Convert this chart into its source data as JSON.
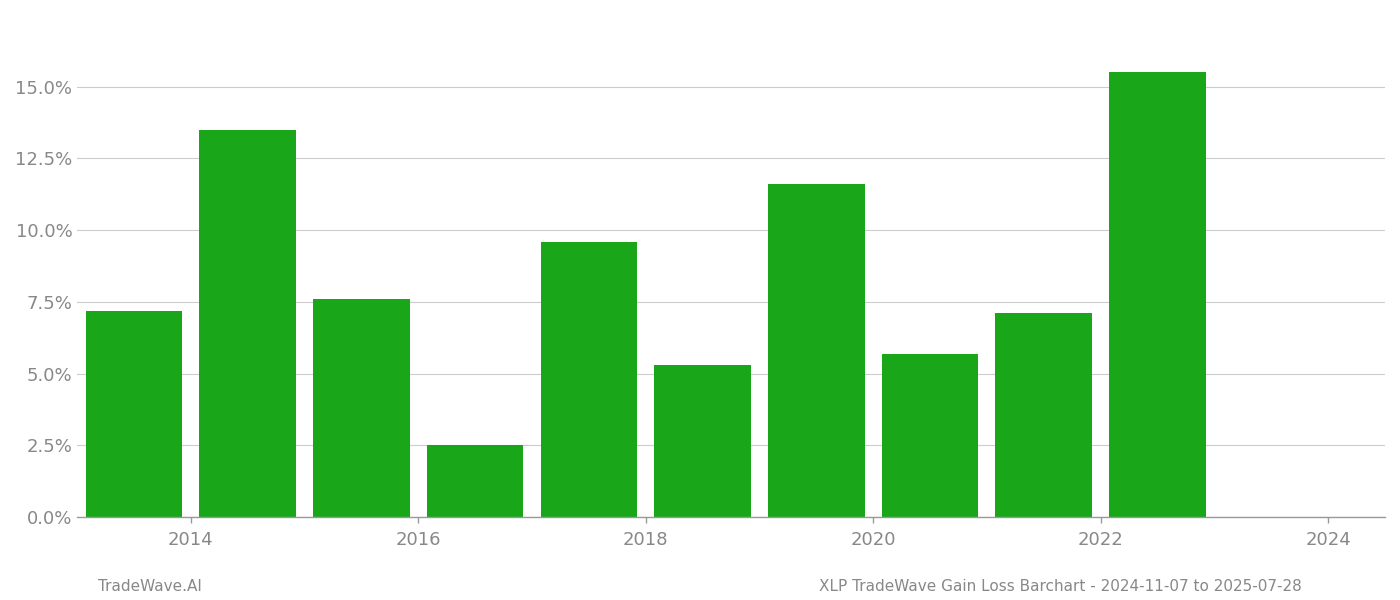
{
  "years": [
    2013.5,
    2014.5,
    2015.5,
    2016.5,
    2017.5,
    2018.5,
    2019.5,
    2020.5,
    2021.5,
    2022.5
  ],
  "values": [
    0.072,
    0.135,
    0.076,
    0.025,
    0.096,
    0.053,
    0.116,
    0.057,
    0.071,
    0.155
  ],
  "bar_color": "#1aa619",
  "bar_width": 0.85,
  "xlim": [
    2013.0,
    2024.5
  ],
  "ylim": [
    0,
    0.175
  ],
  "yticks": [
    0.0,
    0.025,
    0.05,
    0.075,
    0.1,
    0.125,
    0.15
  ],
  "ytick_labels": [
    "0.0%",
    "2.5%",
    "5.0%",
    "7.5%",
    "10.0%",
    "12.5%",
    "15.0%"
  ],
  "xtick_positions": [
    2014,
    2016,
    2018,
    2020,
    2022,
    2024
  ],
  "xtick_labels": [
    "2014",
    "2016",
    "2018",
    "2020",
    "2022",
    "2024"
  ],
  "footer_left": "TradeWave.AI",
  "footer_right": "XLP TradeWave Gain Loss Barchart - 2024-11-07 to 2025-07-28",
  "background_color": "#ffffff",
  "grid_color": "#cccccc",
  "axis_color": "#999999",
  "text_color": "#888888",
  "footer_color": "#888888",
  "figsize": [
    14.0,
    6.0
  ],
  "dpi": 100
}
